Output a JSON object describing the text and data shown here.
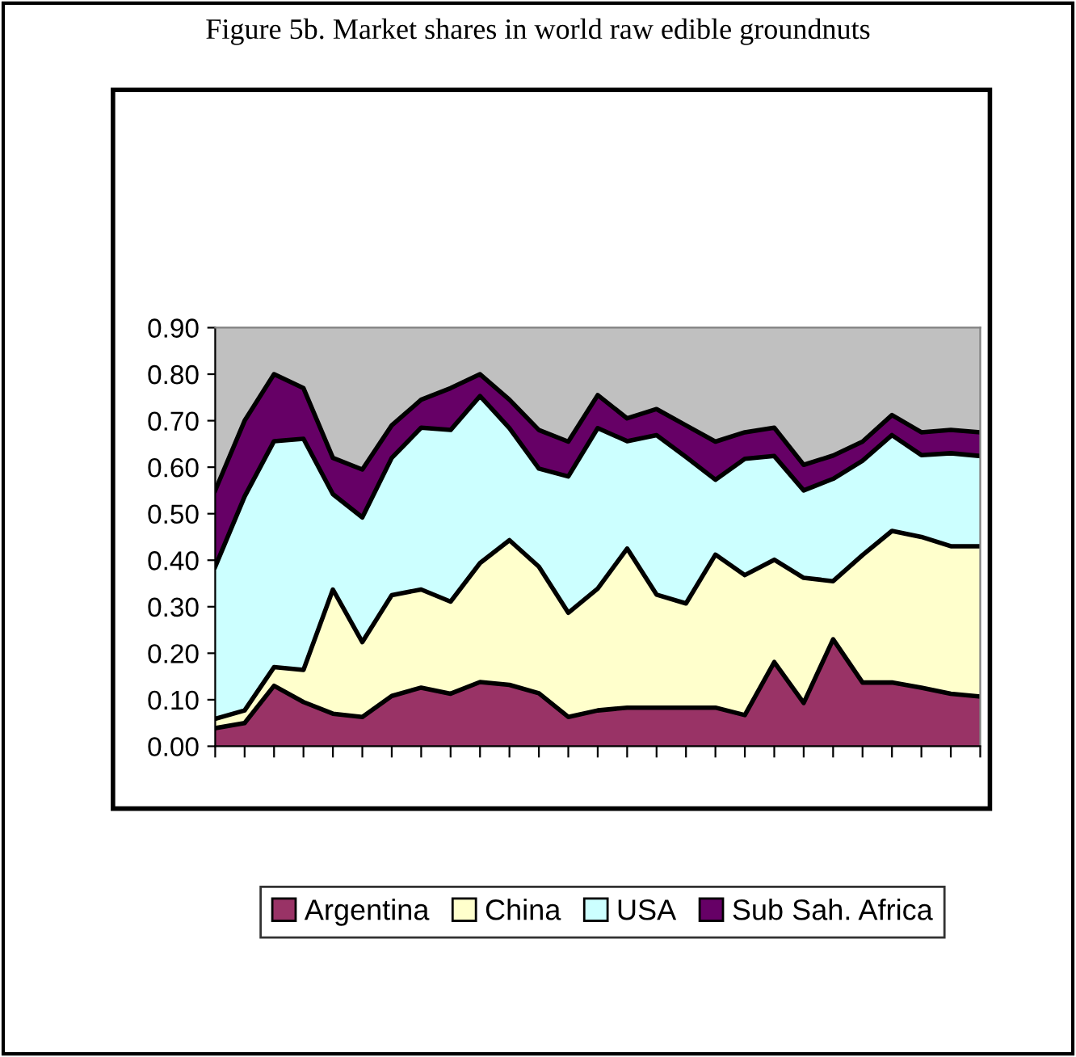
{
  "chart_data": {
    "type": "area",
    "stacked": true,
    "title": "Figure 5b. Market shares in world raw edible groundnuts",
    "categories": [
      null,
      null,
      null,
      null,
      null,
      null,
      null,
      null,
      null,
      null,
      null,
      null,
      null,
      null,
      null,
      null,
      null,
      null,
      null,
      null,
      null,
      null,
      null,
      null,
      null,
      null,
      null
    ],
    "series": [
      {
        "name": "Argentina",
        "color": "#993366",
        "values": [
          0.039,
          0.05,
          0.13,
          0.095,
          0.07,
          0.063,
          0.108,
          0.126,
          0.113,
          0.138,
          0.132,
          0.114,
          0.063,
          0.077,
          0.083,
          0.083,
          0.083,
          0.083,
          0.067,
          0.181,
          0.093,
          0.23,
          0.137,
          0.137,
          0.126,
          0.113,
          0.107
        ]
      },
      {
        "name": "China",
        "color": "#ffffcc",
        "values": [
          0.02,
          0.027,
          0.04,
          0.069,
          0.267,
          0.161,
          0.217,
          0.211,
          0.198,
          0.256,
          0.311,
          0.272,
          0.224,
          0.262,
          0.342,
          0.243,
          0.224,
          0.329,
          0.301,
          0.22,
          0.269,
          0.125,
          0.274,
          0.326,
          0.324,
          0.317,
          0.323
        ]
      },
      {
        "name": "USA",
        "color": "#ccffff",
        "values": [
          0.327,
          0.46,
          0.486,
          0.497,
          0.205,
          0.268,
          0.295,
          0.348,
          0.369,
          0.359,
          0.241,
          0.211,
          0.293,
          0.345,
          0.231,
          0.343,
          0.315,
          0.161,
          0.25,
          0.223,
          0.188,
          0.22,
          0.203,
          0.206,
          0.176,
          0.2,
          0.194
        ]
      },
      {
        "name": "Sub Sah. Africa",
        "color": "#660066",
        "values": [
          0.164,
          0.163,
          0.144,
          0.109,
          0.078,
          0.103,
          0.07,
          0.06,
          0.09,
          0.047,
          0.061,
          0.083,
          0.075,
          0.071,
          0.049,
          0.056,
          0.068,
          0.082,
          0.057,
          0.061,
          0.055,
          0.05,
          0.041,
          0.043,
          0.049,
          0.05,
          0.051
        ]
      }
    ],
    "ylim": [
      0,
      0.9
    ],
    "yticks": [
      {
        "value": 0,
        "label": "0.00"
      },
      {
        "value": 0.1,
        "label": "0.10"
      },
      {
        "value": 0.2,
        "label": "0.20"
      },
      {
        "value": 0.3,
        "label": "0.30"
      },
      {
        "value": 0.4,
        "label": "0.40"
      },
      {
        "value": 0.5,
        "label": "0.50"
      },
      {
        "value": 0.6,
        "label": "0.60"
      },
      {
        "value": 0.7,
        "label": "0.70"
      },
      {
        "value": 0.8,
        "label": "0.80"
      },
      {
        "value": 0.9,
        "label": "0.90"
      }
    ],
    "grid": false,
    "legend": "bottom"
  }
}
